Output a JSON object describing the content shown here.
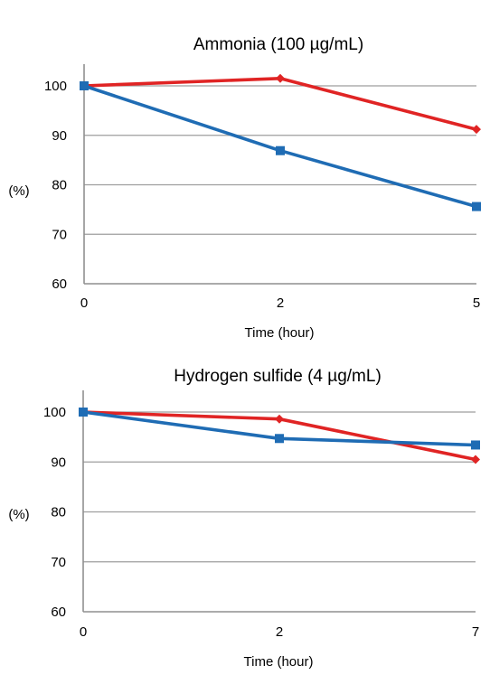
{
  "chart_data": [
    {
      "type": "line",
      "title": "Ammonia (100 µg/mL)",
      "xlabel": "Time (hour)",
      "ylabel": "(%)",
      "categories": [
        "0",
        "2",
        "5"
      ],
      "yticks": [
        "60",
        "70",
        "80",
        "90",
        "100"
      ],
      "ylim": [
        60,
        100
      ],
      "grid": true,
      "legend": "none",
      "series": [
        {
          "color": "#e02424",
          "marker": "diamond",
          "values": [
            100,
            101.5,
            91.2
          ]
        },
        {
          "color": "#1f6cb4",
          "marker": "square",
          "values": [
            100,
            86.9,
            75.6
          ]
        }
      ]
    },
    {
      "type": "line",
      "title": "Hydrogen sulfide (4 µg/mL)",
      "xlabel": "Time (hour)",
      "ylabel": "(%)",
      "categories": [
        "0",
        "2",
        "7"
      ],
      "yticks": [
        "60",
        "70",
        "80",
        "90",
        "100"
      ],
      "ylim": [
        60,
        100
      ],
      "grid": true,
      "legend": "none",
      "series": [
        {
          "color": "#e02424",
          "marker": "diamond",
          "values": [
            100,
            98.6,
            90.5
          ]
        },
        {
          "color": "#1f6cb4",
          "marker": "square",
          "values": [
            100,
            94.7,
            93.4
          ]
        }
      ]
    }
  ]
}
